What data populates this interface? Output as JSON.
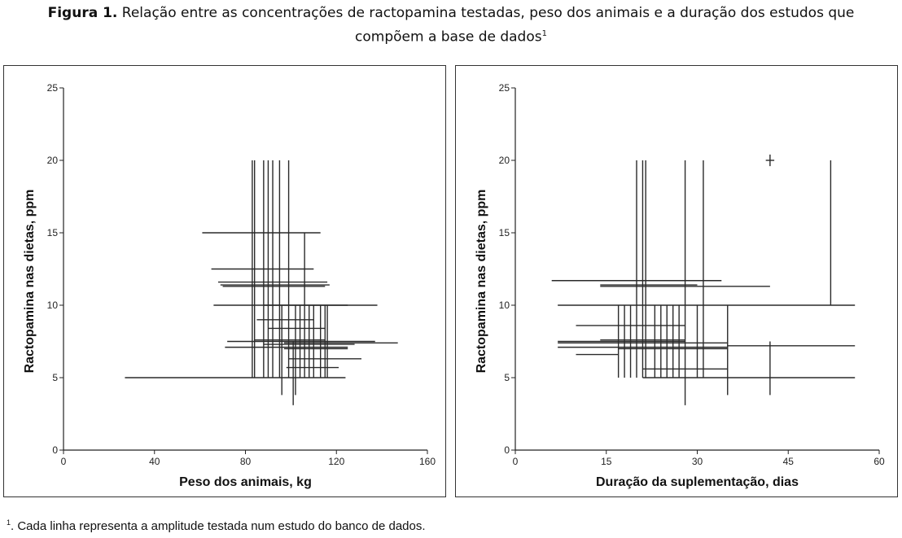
{
  "caption": {
    "label": "Figura 1.",
    "text": "Relação entre as concentrações de ractopamina testadas, peso dos animais e a duração dos estudos que",
    "text2": "compõem a base de dados",
    "sup": "1"
  },
  "footnote": {
    "sup": "1",
    "text": ". Cada linha representa a amplitude testada num estudo do banco de dados."
  },
  "chart_data": [
    {
      "type": "line",
      "title": "",
      "xlabel": "Peso dos animais, kg",
      "ylabel": "Ractopamina nas dietas, ppm",
      "xlim": [
        0,
        160
      ],
      "ylim": [
        0,
        25
      ],
      "xticks": [
        0,
        40,
        80,
        120,
        160
      ],
      "yticks": [
        0,
        5,
        10,
        15,
        20,
        25
      ],
      "grid": false,
      "horizontal_segments": [
        {
          "y": 5,
          "x0": 27,
          "x1": 124
        },
        {
          "y": 5.7,
          "x0": 98,
          "x1": 121
        },
        {
          "y": 6.3,
          "x0": 99,
          "x1": 131
        },
        {
          "y": 7.0,
          "x0": 97,
          "x1": 125
        },
        {
          "y": 7.1,
          "x0": 71,
          "x1": 125
        },
        {
          "y": 7.3,
          "x0": 88,
          "x1": 128
        },
        {
          "y": 7.4,
          "x0": 97,
          "x1": 147
        },
        {
          "y": 7.5,
          "x0": 72,
          "x1": 137
        },
        {
          "y": 7.6,
          "x0": 84,
          "x1": 115
        },
        {
          "y": 8.4,
          "x0": 90,
          "x1": 115
        },
        {
          "y": 9.0,
          "x0": 85,
          "x1": 110
        },
        {
          "y": 10,
          "x0": 66,
          "x1": 138
        },
        {
          "y": 10.0,
          "x0": 88,
          "x1": 125
        },
        {
          "y": 11.3,
          "x0": 70,
          "x1": 115
        },
        {
          "y": 11.4,
          "x0": 69,
          "x1": 117
        },
        {
          "y": 11.6,
          "x0": 68,
          "x1": 116
        },
        {
          "y": 12.5,
          "x0": 65,
          "x1": 110
        },
        {
          "y": 15,
          "x0": 61,
          "x1": 113
        }
      ],
      "vertical_segments": [
        {
          "x": 83,
          "y0": 5,
          "y1": 20
        },
        {
          "x": 84,
          "y0": 5,
          "y1": 20
        },
        {
          "x": 88,
          "y0": 5,
          "y1": 20
        },
        {
          "x": 90,
          "y0": 5,
          "y1": 20
        },
        {
          "x": 92,
          "y0": 5,
          "y1": 20
        },
        {
          "x": 95,
          "y0": 5,
          "y1": 20
        },
        {
          "x": 99,
          "y0": 5,
          "y1": 20
        },
        {
          "x": 96,
          "y0": 3.8,
          "y1": 10
        },
        {
          "x": 101,
          "y0": 3.1,
          "y1": 7.5
        },
        {
          "x": 102,
          "y0": 3.8,
          "y1": 10
        },
        {
          "x": 104,
          "y0": 5,
          "y1": 10
        },
        {
          "x": 106,
          "y0": 5,
          "y1": 15
        },
        {
          "x": 108,
          "y0": 5,
          "y1": 10
        },
        {
          "x": 110,
          "y0": 5,
          "y1": 10
        },
        {
          "x": 113,
          "y0": 5,
          "y1": 10
        },
        {
          "x": 115,
          "y0": 5,
          "y1": 10
        },
        {
          "x": 116,
          "y0": 5,
          "y1": 10
        }
      ]
    },
    {
      "type": "line",
      "title": "",
      "xlabel": "Duração da suplementação, dias",
      "ylabel": "Ractopamina nas dietas, ppm",
      "xlim": [
        0,
        60
      ],
      "ylim": [
        0,
        25
      ],
      "xticks": [
        0,
        15,
        30,
        45,
        60
      ],
      "yticks": [
        0,
        5,
        10,
        15,
        20,
        25
      ],
      "grid": false,
      "horizontal_segments": [
        {
          "y": 5,
          "x0": 21,
          "x1": 56
        },
        {
          "y": 5.6,
          "x0": 21,
          "x1": 35
        },
        {
          "y": 6.6,
          "x0": 10,
          "x1": 17
        },
        {
          "y": 7.0,
          "x0": 17,
          "x1": 35
        },
        {
          "y": 7.1,
          "x0": 7,
          "x1": 35
        },
        {
          "y": 7.2,
          "x0": 35,
          "x1": 56
        },
        {
          "y": 7.4,
          "x0": 7,
          "x1": 35
        },
        {
          "y": 7.5,
          "x0": 7,
          "x1": 28
        },
        {
          "y": 7.6,
          "x0": 14,
          "x1": 28
        },
        {
          "y": 8.6,
          "x0": 10,
          "x1": 28
        },
        {
          "y": 10,
          "x0": 7,
          "x1": 56
        },
        {
          "y": 11.3,
          "x0": 14,
          "x1": 42
        },
        {
          "y": 11.4,
          "x0": 14,
          "x1": 30
        },
        {
          "y": 11.7,
          "x0": 6,
          "x1": 34
        },
        {
          "y": 20,
          "x0": 41.3,
          "x1": 42.7
        }
      ],
      "vertical_segments": [
        {
          "x": 20,
          "y0": 5,
          "y1": 20
        },
        {
          "x": 21,
          "y0": 5,
          "y1": 20
        },
        {
          "x": 21.5,
          "y0": 5,
          "y1": 20
        },
        {
          "x": 28,
          "y0": 3.1,
          "y1": 20
        },
        {
          "x": 31,
          "y0": 5,
          "y1": 20
        },
        {
          "x": 52,
          "y0": 10,
          "y1": 20
        },
        {
          "x": 17,
          "y0": 5,
          "y1": 10
        },
        {
          "x": 18,
          "y0": 5,
          "y1": 10
        },
        {
          "x": 19,
          "y0": 5,
          "y1": 10
        },
        {
          "x": 23,
          "y0": 5,
          "y1": 10
        },
        {
          "x": 24,
          "y0": 5,
          "y1": 10
        },
        {
          "x": 25,
          "y0": 5,
          "y1": 10
        },
        {
          "x": 26,
          "y0": 5,
          "y1": 10
        },
        {
          "x": 27,
          "y0": 5,
          "y1": 10
        },
        {
          "x": 30,
          "y0": 5,
          "y1": 10
        },
        {
          "x": 35,
          "y0": 3.8,
          "y1": 10
        },
        {
          "x": 42,
          "y0": 3.8,
          "y1": 7.5
        },
        {
          "x": 42,
          "y0": 19.6,
          "y1": 20.4
        }
      ]
    }
  ]
}
